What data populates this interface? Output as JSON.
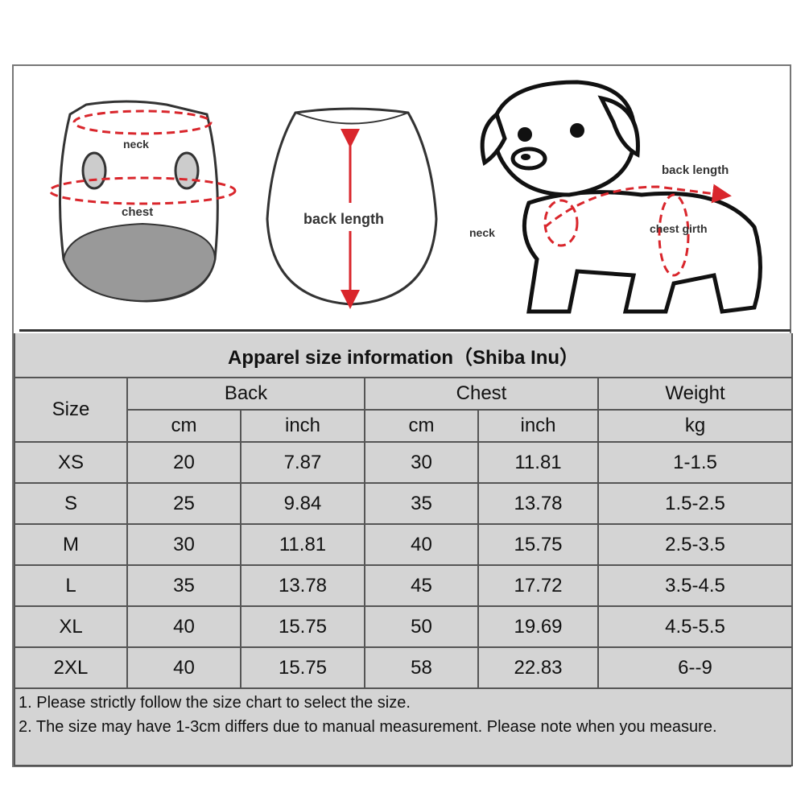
{
  "illustrations": {
    "front_labels": {
      "neck": "neck",
      "chest": "chest"
    },
    "back_label": "back length",
    "dog_labels": {
      "back_length": "back length",
      "neck": "neck",
      "chest_girth": "chest girth"
    },
    "accent_color": "#d9262c"
  },
  "table": {
    "title": "Apparel  size  information（Shiba Inu）",
    "headers": {
      "size": "Size",
      "back": "Back",
      "chest": "Chest",
      "weight": "Weight",
      "units": [
        "cm",
        "inch",
        "cm",
        "inch",
        "kg"
      ]
    },
    "rows": [
      [
        "XS",
        "20",
        "7.87",
        "30",
        "11.81",
        "1-1.5"
      ],
      [
        "S",
        "25",
        "9.84",
        "35",
        "13.78",
        "1.5-2.5"
      ],
      [
        "M",
        "30",
        "11.81",
        "40",
        "15.75",
        "2.5-3.5"
      ],
      [
        "L",
        "35",
        "13.78",
        "45",
        "17.72",
        "3.5-4.5"
      ],
      [
        "XL",
        "40",
        "15.75",
        "50",
        "19.69",
        "4.5-5.5"
      ],
      [
        "2XL",
        "40",
        "15.75",
        "58",
        "22.83",
        "6--9"
      ]
    ],
    "notes": [
      "1. Please strictly follow the size chart  to select the size.",
      "2. The size may have 1-3cm differs due to manual measurement. Please note when you measure."
    ]
  }
}
